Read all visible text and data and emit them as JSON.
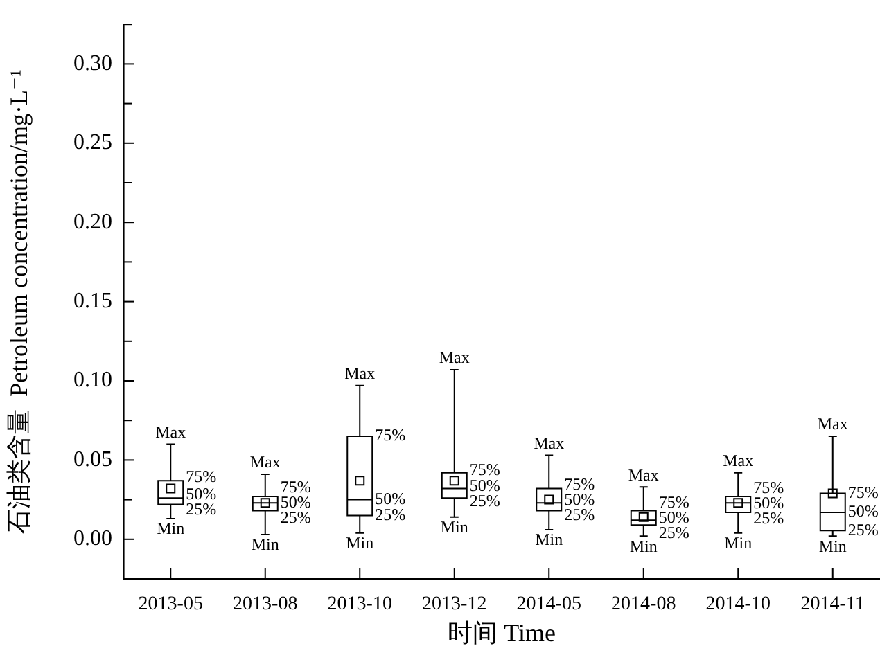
{
  "chart_data": {
    "type": "box",
    "xlabel": "时间 Time",
    "ylabel": "石油类含量  Petroleum concentration/mg·L⁻¹",
    "color": "#000000",
    "categories": [
      "2013-05",
      "2013-08",
      "2013-10",
      "2013-12",
      "2014-05",
      "2014-08",
      "2014-10",
      "2014-11"
    ],
    "boxes": [
      {
        "low": 0.013,
        "q1": 0.022,
        "median": 0.026,
        "q3": 0.037,
        "high": 0.06,
        "mean": 0.032
      },
      {
        "low": 0.003,
        "q1": 0.018,
        "median": 0.023,
        "q3": 0.027,
        "high": 0.041,
        "mean": 0.023
      },
      {
        "low": 0.004,
        "q1": 0.015,
        "median": 0.025,
        "q3": 0.065,
        "high": 0.097,
        "mean": 0.037
      },
      {
        "low": 0.014,
        "q1": 0.026,
        "median": 0.032,
        "q3": 0.042,
        "high": 0.107,
        "mean": 0.037
      },
      {
        "low": 0.006,
        "q1": 0.018,
        "median": 0.023,
        "q3": 0.032,
        "high": 0.053,
        "mean": 0.025
      },
      {
        "low": 0.002,
        "q1": 0.009,
        "median": 0.012,
        "q3": 0.018,
        "high": 0.033,
        "mean": 0.014
      },
      {
        "low": 0.004,
        "q1": 0.017,
        "median": 0.023,
        "q3": 0.027,
        "high": 0.042,
        "mean": 0.023
      },
      {
        "low": 0.002,
        "q1": 0.0055,
        "median": 0.017,
        "q3": 0.029,
        "high": 0.065,
        "mean": 0.029
      }
    ],
    "ylim": [
      -0.025,
      0.325
    ],
    "yticks": [
      {
        "value": -0.025,
        "label": null
      },
      {
        "value": 0,
        "label": "0.00"
      },
      {
        "value": 0.025,
        "label": null
      },
      {
        "value": 0.05,
        "label": "0.05"
      },
      {
        "value": 0.075,
        "label": null
      },
      {
        "value": 0.1,
        "label": "0.10"
      },
      {
        "value": 0.125,
        "label": null
      },
      {
        "value": 0.15,
        "label": "0.15"
      },
      {
        "value": 0.175,
        "label": null
      },
      {
        "value": 0.2,
        "label": "0.20"
      },
      {
        "value": 0.225,
        "label": null
      },
      {
        "value": 0.25,
        "label": "0.25"
      },
      {
        "value": 0.275,
        "label": null
      },
      {
        "value": 0.3,
        "label": "0.30"
      },
      {
        "value": 0.325,
        "label": null
      }
    ],
    "annotations": [
      {
        "text": "Max",
        "x": "2013-05",
        "y": 0.06
      },
      {
        "text": "75%",
        "x": "2013-05",
        "y": 0.037
      },
      {
        "text": "50%",
        "x": "2013-05",
        "y": 0.026
      },
      {
        "text": "25%",
        "x": "2013-05",
        "y": 0.022
      },
      {
        "text": "Min",
        "x": "2013-05",
        "y": 0.013
      },
      {
        "text": "Max",
        "x": "2013-08",
        "y": 0.041
      },
      {
        "text": "75%",
        "x": "2013-08",
        "y": 0.027
      },
      {
        "text": "50%",
        "x": "2013-08",
        "y": 0.023
      },
      {
        "text": "25%",
        "x": "2013-08",
        "y": 0.018
      },
      {
        "text": "Min",
        "x": "2013-08",
        "y": 0.003
      },
      {
        "text": "Max",
        "x": "2013-10",
        "y": 0.097
      },
      {
        "text": "75%",
        "x": "2013-10",
        "y": 0.065
      },
      {
        "text": "50%",
        "x": "2013-10",
        "y": 0.025
      },
      {
        "text": "25%",
        "x": "2013-10",
        "y": 0.015
      },
      {
        "text": "Min",
        "x": "2013-10",
        "y": 0.004
      },
      {
        "text": "Max",
        "x": "2013-12",
        "y": 0.107
      },
      {
        "text": "75%",
        "x": "2013-12",
        "y": 0.042
      },
      {
        "text": "50%",
        "x": "2013-12",
        "y": 0.032
      },
      {
        "text": "25%",
        "x": "2013-12",
        "y": 0.026
      },
      {
        "text": "Min",
        "x": "2013-12",
        "y": 0.014
      },
      {
        "text": "Max",
        "x": "2014-05",
        "y": 0.053
      },
      {
        "text": "75%",
        "x": "2014-05",
        "y": 0.032
      },
      {
        "text": "50%",
        "x": "2014-05",
        "y": 0.023
      },
      {
        "text": "25%",
        "x": "2014-05",
        "y": 0.018
      },
      {
        "text": "Min",
        "x": "2014-05",
        "y": 0.006
      },
      {
        "text": "Max",
        "x": "2014-08",
        "y": 0.033
      },
      {
        "text": "75%",
        "x": "2014-08",
        "y": 0.018
      },
      {
        "text": "50%",
        "x": "2014-08",
        "y": 0.012
      },
      {
        "text": "25%",
        "x": "2014-08",
        "y": 0.009
      },
      {
        "text": "Min",
        "x": "2014-08",
        "y": 0.002
      },
      {
        "text": "Max",
        "x": "2014-10",
        "y": 0.042
      },
      {
        "text": "75%",
        "x": "2014-10",
        "y": 0.027
      },
      {
        "text": "50%",
        "x": "2014-10",
        "y": 0.023
      },
      {
        "text": "25%",
        "x": "2014-10",
        "y": 0.017
      },
      {
        "text": "Min",
        "x": "2014-10",
        "y": 0.004
      },
      {
        "text": "Max",
        "x": "2014-11",
        "y": 0.065
      },
      {
        "text": "75%",
        "x": "2014-11",
        "y": 0.029
      },
      {
        "text": "50%",
        "x": "2014-11",
        "y": 0.017
      },
      {
        "text": "25%",
        "x": "2014-11",
        "y": 0.0055
      },
      {
        "text": "Min",
        "x": "2014-11",
        "y": 0.002
      }
    ]
  }
}
